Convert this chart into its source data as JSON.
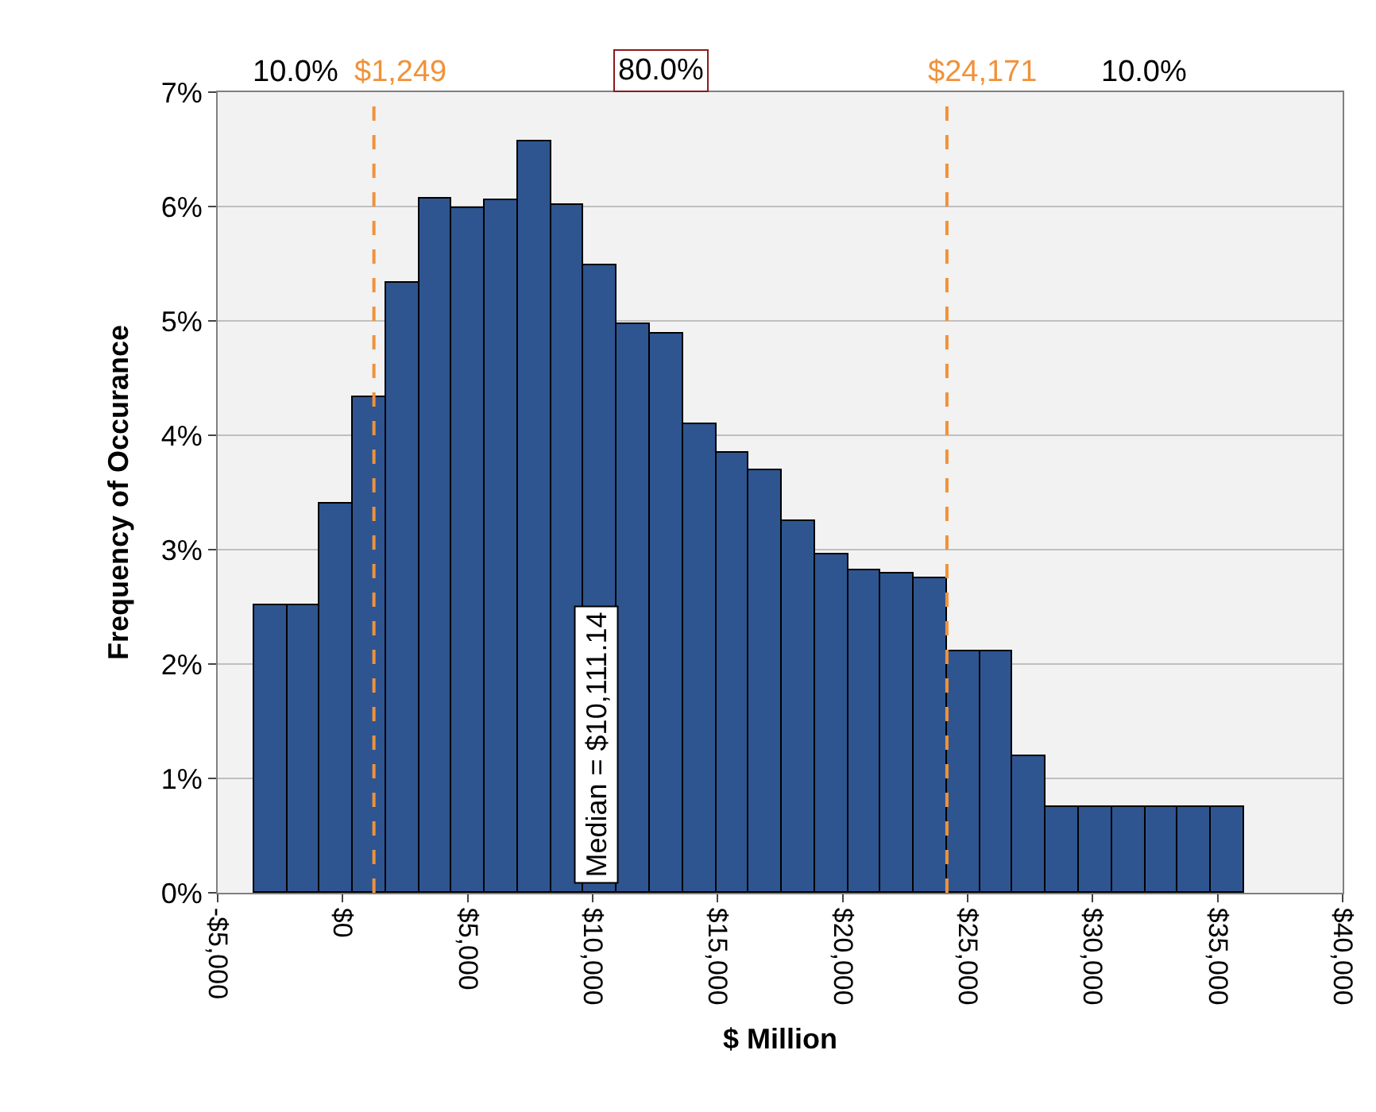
{
  "chart_data": {
    "type": "histogram",
    "xlabel": "$ Million",
    "ylabel": "Frequency of Occurance",
    "bins": [
      -3550,
      -2230,
      -910,
      410,
      1730,
      3050,
      4370,
      5690,
      7010,
      8330,
      9650,
      10970,
      12290,
      13610,
      14930,
      16250,
      17570,
      18890,
      20210,
      21530,
      22850,
      24170,
      25490,
      26810,
      28130,
      29450,
      30770,
      32090,
      33410,
      34730,
      36050
    ],
    "values": [
      2.51,
      2.51,
      3.4,
      4.33,
      5.33,
      6.07,
      5.99,
      6.06,
      6.57,
      6.01,
      5.49,
      4.97,
      4.89,
      4.1,
      3.85,
      3.69,
      3.25,
      2.96,
      2.82,
      2.79,
      2.75,
      2.11,
      2.11,
      1.19,
      0.75,
      0.75,
      0.75,
      0.75,
      0.75,
      0.75
    ],
    "color": "#2e5590",
    "xlim": [
      -5000,
      40000
    ],
    "xticks": [
      {
        "value": -5000,
        "label": "-$5,000"
      },
      {
        "value": 0,
        "label": "$0"
      },
      {
        "value": 5000,
        "label": "$5,000"
      },
      {
        "value": 10000,
        "label": "$10,000"
      },
      {
        "value": 15000,
        "label": "$15,000"
      },
      {
        "value": 20000,
        "label": "$20,000"
      },
      {
        "value": 25000,
        "label": "$25,000"
      },
      {
        "value": 30000,
        "label": "$30,000"
      },
      {
        "value": 35000,
        "label": "$35,000"
      },
      {
        "value": 40000,
        "label": "$40,000"
      }
    ],
    "ylim": [
      0,
      7
    ],
    "yticks": [
      {
        "value": 0,
        "label": "0%"
      },
      {
        "value": 1,
        "label": "1%"
      },
      {
        "value": 2,
        "label": "2%"
      },
      {
        "value": 3,
        "label": "3%"
      },
      {
        "value": 4,
        "label": "4%"
      },
      {
        "value": 5,
        "label": "5%"
      },
      {
        "value": 6,
        "label": "6%"
      },
      {
        "value": 7,
        "label": "7%"
      }
    ],
    "grid": "y",
    "ref_lines": [
      {
        "axis": "x",
        "value": 1249,
        "label": "$1,249",
        "color": "#f0923a",
        "line_style": "dashed"
      },
      {
        "axis": "x",
        "value": 24171,
        "label": "$24,171",
        "color": "#f0923a",
        "line_style": "dashed"
      }
    ],
    "annotations": [
      "10.0%",
      "80.0%",
      "10.0%",
      {
        "text": "Median = $10,111.14",
        "x": 10111.14,
        "y": 0
      }
    ]
  }
}
